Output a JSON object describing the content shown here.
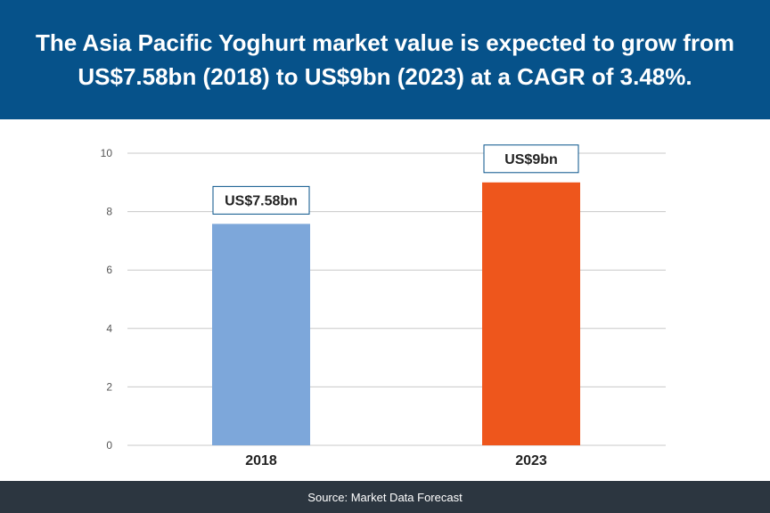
{
  "header": {
    "title": "The Asia Pacific Yoghurt market value is expected to grow from US$7.58bn (2018) to US$9bn (2023) at a CAGR of 3.48%."
  },
  "footer": {
    "source": "Source: Market Data Forecast"
  },
  "colors": {
    "header_bg": "#06528a",
    "footer_bg": "#2c3640",
    "bar_2018": "#7da7da",
    "bar_2023": "#ee561c",
    "label_border": "#06528a"
  },
  "chart_data": {
    "type": "bar",
    "categories": [
      "2018",
      "2023"
    ],
    "values": [
      7.58,
      9
    ],
    "data_labels": [
      "US$7.58bn",
      "US$9bn"
    ],
    "ylim": [
      0,
      10
    ],
    "yticks": [
      0,
      2,
      4,
      6,
      8,
      10
    ],
    "grid": true,
    "title": "",
    "xlabel": "",
    "ylabel": ""
  }
}
